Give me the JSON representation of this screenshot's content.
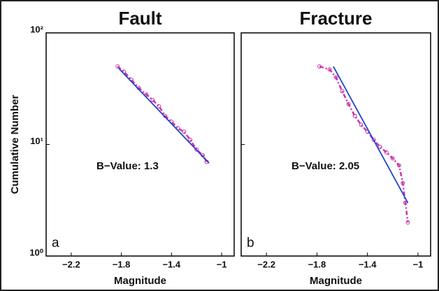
{
  "chart_data": [
    {
      "type": "line",
      "title": "Fault",
      "xlabel": "Magnitude",
      "ylabel": "Cumulative Number",
      "annotations": [
        "B−Value: 1.3",
        "a"
      ],
      "log_y": true,
      "xlim": [
        -2.4,
        -0.9
      ],
      "ylim": [
        1,
        100
      ],
      "xticks": [
        {
          "value": -2.2,
          "label": "−2.2"
        },
        {
          "value": -1.8,
          "label": "−1.8"
        },
        {
          "value": -1.4,
          "label": "−1.4"
        },
        {
          "value": -1,
          "label": "−1"
        }
      ],
      "yticks": [
        {
          "value": 1,
          "label": "10⁰"
        },
        {
          "value": 10,
          "label": "10¹"
        },
        {
          "value": 100,
          "label": "10²"
        }
      ],
      "series": [
        {
          "color": "#cc33aa",
          "marker": "circle",
          "dashed": true,
          "x": [
            -1.83,
            -1.78,
            -1.72,
            -1.66,
            -1.6,
            -1.55,
            -1.5,
            -1.45,
            -1.4,
            -1.35,
            -1.3,
            -1.25,
            -1.2,
            -1.15,
            -1.12
          ],
          "values": [
            50,
            45,
            38,
            32,
            28,
            25,
            22,
            18,
            16,
            14,
            13,
            11,
            9,
            8,
            7
          ]
        },
        {
          "color": "#2244cc",
          "marker": "none",
          "dashed": false,
          "x": [
            -1.82,
            -1.1
          ],
          "values": [
            48,
            6.8
          ]
        }
      ]
    },
    {
      "type": "line",
      "title": "Fracture",
      "xlabel": "Magnitude",
      "annotations": [
        "B−Value: 2.05",
        "b"
      ],
      "log_y": true,
      "xlim": [
        -2.4,
        -0.9
      ],
      "ylim": [
        1,
        100
      ],
      "xticks": [
        {
          "value": -2.2,
          "label": "−2.2"
        },
        {
          "value": -1.8,
          "label": "−1.8"
        },
        {
          "value": -1.4,
          "label": "−1.4"
        },
        {
          "value": -1,
          "label": "−1"
        }
      ],
      "yticks": [
        1,
        10,
        100
      ],
      "series": [
        {
          "color": "#cc33aa",
          "marker": "circle",
          "dashed": true,
          "x": [
            -1.78,
            -1.7,
            -1.65,
            -1.6,
            -1.55,
            -1.5,
            -1.45,
            -1.4,
            -1.35,
            -1.3,
            -1.25,
            -1.2,
            -1.15,
            -1.12,
            -1.1,
            -1.08
          ],
          "values": [
            50,
            47,
            40,
            30,
            23,
            18,
            15,
            13,
            11,
            9.5,
            8.5,
            7.5,
            6.5,
            4.5,
            3,
            2
          ]
        },
        {
          "color": "#2244cc",
          "marker": "none",
          "dashed": false,
          "x": [
            -1.67,
            -1.08
          ],
          "values": [
            50,
            3
          ]
        }
      ]
    }
  ]
}
